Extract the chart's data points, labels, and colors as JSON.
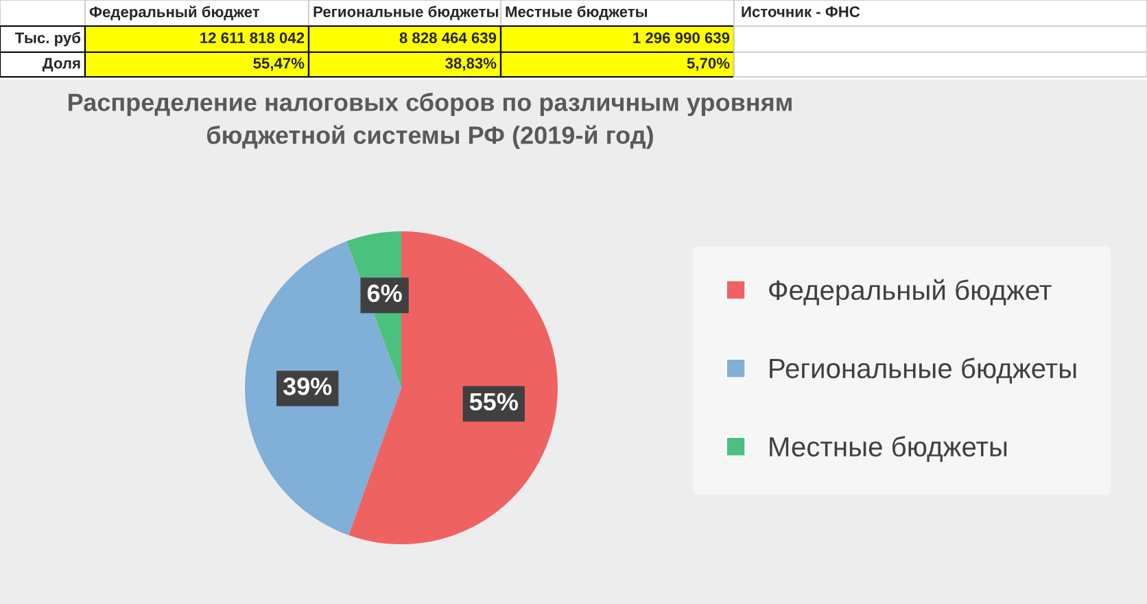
{
  "chart_data": {
    "type": "pie",
    "title": "Распределение налоговых сборов по различным уровням\nбюджетной системы РФ (2019-й год)",
    "categories": [
      "Федеральный бюджет",
      "Региональные бюджеты",
      "Местные бюджеты"
    ],
    "values": [
      55.47,
      38.83,
      5.7
    ],
    "value_labels": [
      "55%",
      "39%",
      "6%"
    ],
    "colors": [
      "#ef6262",
      "#80afd8",
      "#4cc07f"
    ],
    "legend": "right",
    "annotations": [
      "Тыс. руб",
      "12 611 818 042",
      "8 828 464 639",
      "1 296 990 639",
      "Доля",
      "55,47%",
      "38,83%",
      "5,70%",
      "Источник - ФНС"
    ]
  }
}
